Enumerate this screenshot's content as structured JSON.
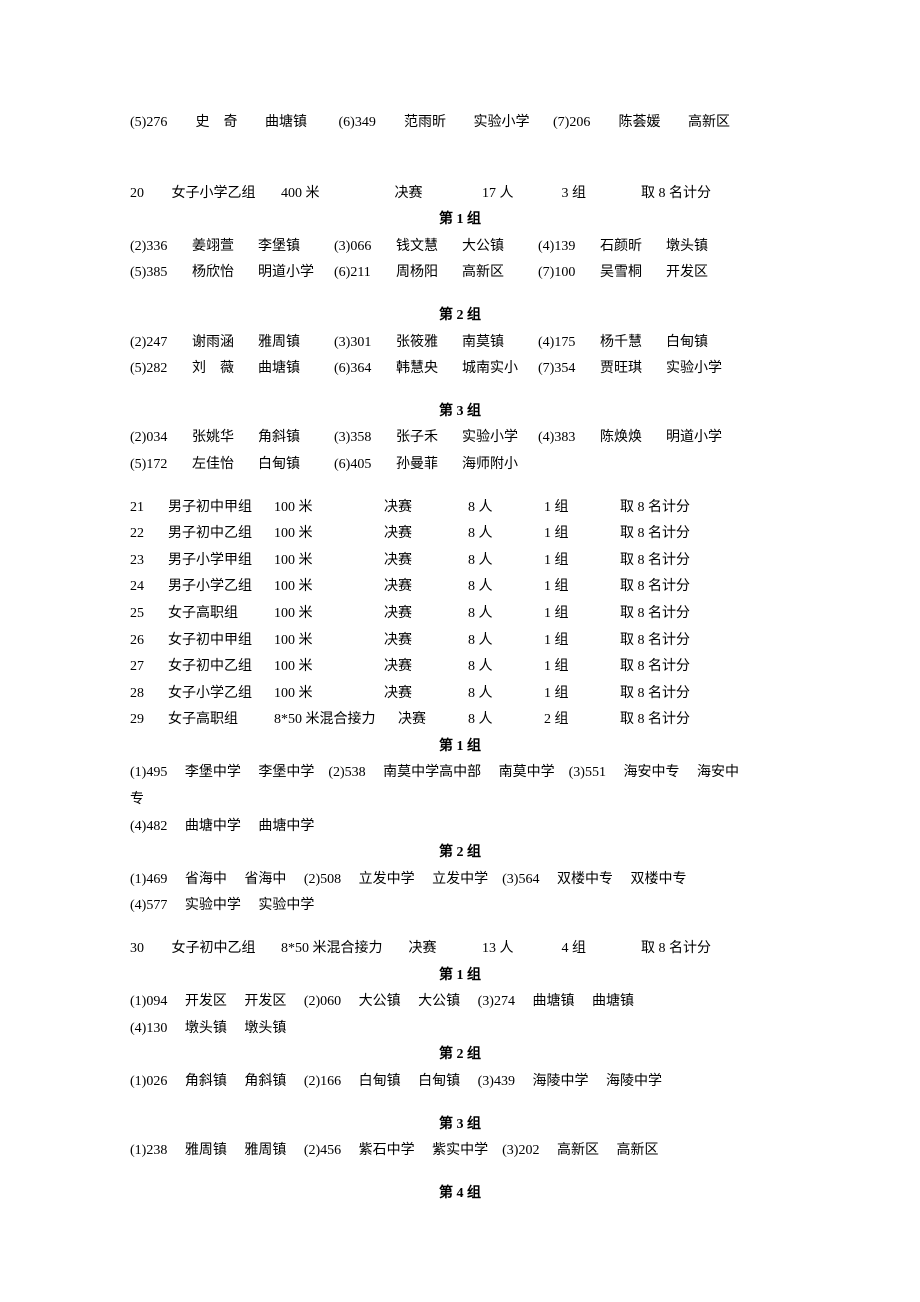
{
  "top_row": [
    {
      "num": "(5)276",
      "name": "史　奇",
      "unit": "曲塘镇"
    },
    {
      "num": "(6)349",
      "name": "范雨昕",
      "unit": "实验小学"
    },
    {
      "num": "(7)206",
      "name": "陈荟媛",
      "unit": "高新区"
    }
  ],
  "event20": {
    "header": {
      "no": "20",
      "cat": "女子小学乙组",
      "dist": "400 米",
      "stage": "决赛",
      "count": "17 人",
      "heats": "3 组",
      "score": "取 8 名计分"
    },
    "g1": {
      "title": "第 1 组",
      "rows": [
        [
          {
            "num": "(2)336",
            "name": "姜翊萱",
            "unit": "李堡镇"
          },
          {
            "num": "(3)066",
            "name": "钱文慧",
            "unit": "大公镇"
          },
          {
            "num": "(4)139",
            "name": "石颜昕",
            "unit": "墩头镇"
          }
        ],
        [
          {
            "num": "(5)385",
            "name": "杨欣怡",
            "unit": "明道小学"
          },
          {
            "num": "(6)211",
            "name": "周杨阳",
            "unit": "高新区"
          },
          {
            "num": "(7)100",
            "name": "吴雪桐",
            "unit": "开发区"
          }
        ]
      ]
    },
    "g2": {
      "title": "第 2 组",
      "rows": [
        [
          {
            "num": "(2)247",
            "name": "谢雨涵",
            "unit": "雅周镇"
          },
          {
            "num": "(3)301",
            "name": "张筱雅",
            "unit": "南莫镇"
          },
          {
            "num": "(4)175",
            "name": "杨千慧",
            "unit": "白甸镇"
          }
        ],
        [
          {
            "num": "(5)282",
            "name": "刘　薇",
            "unit": "曲塘镇"
          },
          {
            "num": "(6)364",
            "name": "韩慧央",
            "unit": "城南实小"
          },
          {
            "num": "(7)354",
            "name": "贾旺琪",
            "unit": "实验小学"
          }
        ]
      ]
    },
    "g3": {
      "title": "第 3 组",
      "rows": [
        [
          {
            "num": "(2)034",
            "name": "张姚华",
            "unit": "角斜镇"
          },
          {
            "num": "(3)358",
            "name": "张子禾",
            "unit": "实验小学"
          },
          {
            "num": "(4)383",
            "name": "陈焕焕",
            "unit": "明道小学"
          }
        ],
        [
          {
            "num": "(5)172",
            "name": "左佳怡",
            "unit": "白甸镇"
          },
          {
            "num": "(6)405",
            "name": "孙曼菲",
            "unit": "海师附小"
          }
        ]
      ]
    }
  },
  "middle_events": [
    {
      "no": "21",
      "cat": "男子初中甲组",
      "dist": "100 米",
      "stage": "决赛",
      "count": "8 人",
      "heats": "1 组",
      "score": "取 8 名计分"
    },
    {
      "no": "22",
      "cat": "男子初中乙组",
      "dist": "100 米",
      "stage": "决赛",
      "count": "8 人",
      "heats": "1 组",
      "score": "取 8 名计分"
    },
    {
      "no": "23",
      "cat": "男子小学甲组",
      "dist": "100 米",
      "stage": "决赛",
      "count": "8 人",
      "heats": "1 组",
      "score": "取 8 名计分"
    },
    {
      "no": "24",
      "cat": "男子小学乙组",
      "dist": "100 米",
      "stage": "决赛",
      "count": "8 人",
      "heats": "1 组",
      "score": "取 8 名计分"
    },
    {
      "no": "25",
      "cat": "女子高职组",
      "dist": "100 米",
      "stage": "决赛",
      "count": "8 人",
      "heats": "1 组",
      "score": "取 8 名计分"
    },
    {
      "no": "26",
      "cat": "女子初中甲组",
      "dist": "100 米",
      "stage": "决赛",
      "count": "8 人",
      "heats": "1 组",
      "score": "取 8 名计分"
    },
    {
      "no": "27",
      "cat": "女子初中乙组",
      "dist": "100 米",
      "stage": "决赛",
      "count": "8 人",
      "heats": "1 组",
      "score": "取 8 名计分"
    },
    {
      "no": "28",
      "cat": "女子小学乙组",
      "dist": "100 米",
      "stage": "决赛",
      "count": "8 人",
      "heats": "1 组",
      "score": "取 8 名计分"
    },
    {
      "no": "29",
      "cat": "女子高职组",
      "dist": "8*50 米混合接力",
      "stage": "决赛",
      "count": "8 人",
      "heats": "2 组",
      "score": "取 8 名计分"
    }
  ],
  "event29": {
    "g1": {
      "title": "第 1 组",
      "line1": "(1)495　 李堡中学　 李堡中学　(2)538　 南莫中学高中部　 南莫中学　(3)551　 海安中专　 海安中",
      "line1b": "专",
      "line2": "(4)482　 曲塘中学　 曲塘中学"
    },
    "g2": {
      "title": "第 2 组",
      "line1": "(1)469　 省海中　 省海中　 (2)508　 立发中学　 立发中学　(3)564　 双楼中专　 双楼中专",
      "line2": "(4)577　 实验中学　 实验中学"
    }
  },
  "event30": {
    "header": {
      "no": "30",
      "cat": "女子初中乙组",
      "dist": "8*50 米混合接力",
      "stage": "决赛",
      "count": "13 人",
      "heats": "4 组",
      "score": "取 8 名计分"
    },
    "g1": {
      "title": "第 1 组",
      "line1": "(1)094　 开发区　 开发区　 (2)060　 大公镇　 大公镇　 (3)274　 曲塘镇　 曲塘镇",
      "line2": "(4)130　 墩头镇　 墩头镇"
    },
    "g2": {
      "title": "第 2 组",
      "line1": "(1)026　 角斜镇　 角斜镇　 (2)166　 白甸镇　 白甸镇　 (3)439　 海陵中学　 海陵中学"
    },
    "g3": {
      "title": "第 3 组",
      "line1": "(1)238　 雅周镇　 雅周镇　 (2)456　 紫石中学　 紫实中学　(3)202　 高新区　 高新区"
    },
    "g4": {
      "title": "第 4 组"
    }
  }
}
